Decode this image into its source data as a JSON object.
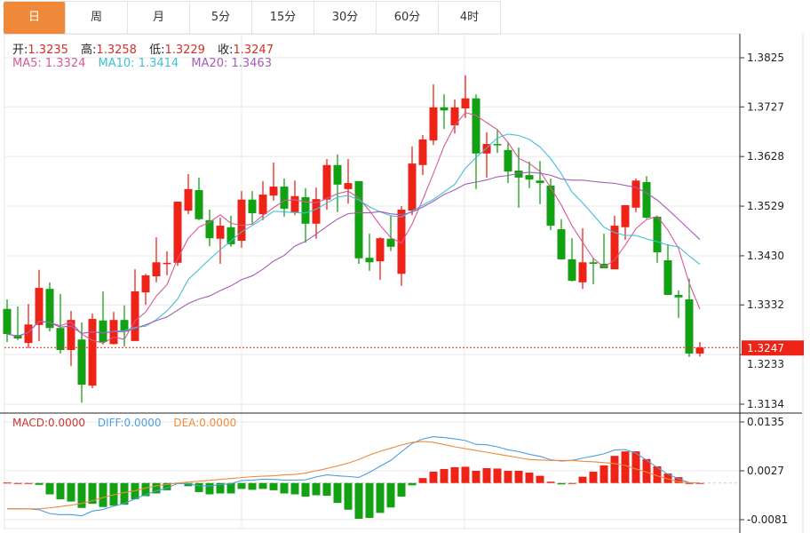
{
  "tabs": [
    {
      "label": "日",
      "active": true
    },
    {
      "label": "周"
    },
    {
      "label": "月"
    },
    {
      "label": "5分"
    },
    {
      "label": "15分"
    },
    {
      "label": "30分"
    },
    {
      "label": "60分"
    },
    {
      "label": "4时"
    }
  ],
  "ohlc": {
    "open_label": "开:",
    "open": "1.3235",
    "high_label": "高:",
    "high": "1.3258",
    "low_label": "低:",
    "low": "1.3229",
    "close_label": "收:",
    "close": "1.3247"
  },
  "ma": {
    "ma5_label": "MA5: 1.3324",
    "ma10_label": "MA10: 1.3414",
    "ma20_label": "MA20: 1.3463"
  },
  "macd_legend": {
    "macd": "MACD:0.0000",
    "diff": "DIFF:0.0000",
    "dea": "DEA:0.0000"
  },
  "colors": {
    "up": "#ee2318",
    "down": "#12a112",
    "ma5": "#d9589a",
    "ma10": "#40c0d4",
    "ma20": "#a55cb8",
    "diff": "#4d9ee0",
    "dea": "#ef8a3a",
    "active_tab": "#f0883a"
  },
  "chart_data": [
    {
      "type": "candlestick",
      "y_ticks": [
        "1.3825",
        "1.3727",
        "1.3628",
        "1.3529",
        "1.3430",
        "1.3332",
        "1.3233",
        "1.3134"
      ],
      "ylim": [
        1.3134,
        1.3825
      ],
      "last_price_label": "1.3247",
      "ma_periods": [
        5,
        10,
        20
      ],
      "candles": [
        [
          1.3324,
          1.3343,
          1.3258,
          1.3274
        ],
        [
          1.3272,
          1.3329,
          1.3262,
          1.3265
        ],
        [
          1.3256,
          1.3334,
          1.3246,
          1.3293
        ],
        [
          1.3292,
          1.3402,
          1.326,
          1.3366
        ],
        [
          1.3364,
          1.3377,
          1.3279,
          1.3286
        ],
        [
          1.3286,
          1.3354,
          1.3235,
          1.3242
        ],
        [
          1.3242,
          1.332,
          1.321,
          1.3302
        ],
        [
          1.3263,
          1.3297,
          1.3137,
          1.3173
        ],
        [
          1.3171,
          1.3315,
          1.3166,
          1.3304
        ],
        [
          1.3301,
          1.3359,
          1.3253,
          1.3258
        ],
        [
          1.3254,
          1.3318,
          1.3253,
          1.3302
        ],
        [
          1.3302,
          1.3331,
          1.3249,
          1.3279
        ],
        [
          1.326,
          1.3403,
          1.326,
          1.3359
        ],
        [
          1.3357,
          1.3394,
          1.3332,
          1.3391
        ],
        [
          1.3389,
          1.3467,
          1.3377,
          1.3417
        ],
        [
          1.3414,
          1.3439,
          1.3391,
          1.3416
        ],
        [
          1.3416,
          1.3538,
          1.341,
          1.3538
        ],
        [
          1.352,
          1.3593,
          1.3513,
          1.3563
        ],
        [
          1.3561,
          1.3586,
          1.3501,
          1.3503
        ],
        [
          1.3501,
          1.3522,
          1.3449,
          1.3465
        ],
        [
          1.3464,
          1.3506,
          1.3414,
          1.349
        ],
        [
          1.3487,
          1.351,
          1.3448,
          1.3453
        ],
        [
          1.346,
          1.3559,
          1.3446,
          1.3542
        ],
        [
          1.3542,
          1.3559,
          1.3494,
          1.3515
        ],
        [
          1.3513,
          1.3579,
          1.3501,
          1.3552
        ],
        [
          1.355,
          1.3616,
          1.354,
          1.3568
        ],
        [
          1.3568,
          1.3584,
          1.3508,
          1.3524
        ],
        [
          1.3517,
          1.358,
          1.3511,
          1.3549
        ],
        [
          1.3547,
          1.3565,
          1.3456,
          1.3494
        ],
        [
          1.3494,
          1.3566,
          1.3464,
          1.3543
        ],
        [
          1.3542,
          1.3623,
          1.3522,
          1.3611
        ],
        [
          1.3611,
          1.3632,
          1.3517,
          1.3572
        ],
        [
          1.3563,
          1.3623,
          1.3534,
          1.3575
        ],
        [
          1.3579,
          1.3579,
          1.3414,
          1.3425
        ],
        [
          1.3426,
          1.3474,
          1.34,
          1.3417
        ],
        [
          1.3419,
          1.3467,
          1.3382,
          1.3465
        ],
        [
          1.3464,
          1.351,
          1.3439,
          1.3448
        ],
        [
          1.3394,
          1.3529,
          1.337,
          1.3522
        ],
        [
          1.352,
          1.3648,
          1.3511,
          1.3614
        ],
        [
          1.3611,
          1.3671,
          1.3591,
          1.3662
        ],
        [
          1.366,
          1.3772,
          1.3651,
          1.3726
        ],
        [
          1.3726,
          1.3752,
          1.3683,
          1.372
        ],
        [
          1.369,
          1.3742,
          1.3674,
          1.3726
        ],
        [
          1.3724,
          1.379,
          1.3705,
          1.3744
        ],
        [
          1.3744,
          1.3752,
          1.3563,
          1.3634
        ],
        [
          1.3634,
          1.3676,
          1.3586,
          1.3653
        ],
        [
          1.3653,
          1.3681,
          1.3635,
          1.3651
        ],
        [
          1.3641,
          1.3657,
          1.3575,
          1.3598
        ],
        [
          1.36,
          1.3646,
          1.3526,
          1.3586
        ],
        [
          1.3591,
          1.3618,
          1.3565,
          1.3582
        ],
        [
          1.358,
          1.3619,
          1.3533,
          1.3575
        ],
        [
          1.357,
          1.3584,
          1.3481,
          1.349
        ],
        [
          1.3483,
          1.3503,
          1.3423,
          1.3423
        ],
        [
          1.3423,
          1.3465,
          1.3379,
          1.338
        ],
        [
          1.3377,
          1.3485,
          1.3364,
          1.3417
        ],
        [
          1.3417,
          1.3426,
          1.3373,
          1.3414
        ],
        [
          1.3414,
          1.3474,
          1.3405,
          1.3405
        ],
        [
          1.3403,
          1.351,
          1.3403,
          1.349
        ],
        [
          1.3487,
          1.3531,
          1.3462,
          1.3531
        ],
        [
          1.3526,
          1.3584,
          1.3517,
          1.358
        ],
        [
          1.3577,
          1.3589,
          1.3504,
          1.3506
        ],
        [
          1.3508,
          1.351,
          1.3416,
          1.3437
        ],
        [
          1.3421,
          1.3453,
          1.3352,
          1.3352
        ],
        [
          1.3352,
          1.3361,
          1.3306,
          1.3347
        ],
        [
          1.3343,
          1.3384,
          1.3228,
          1.3235
        ],
        [
          1.3235,
          1.3258,
          1.3229,
          1.3247
        ]
      ]
    },
    {
      "type": "macd",
      "y_ticks": [
        "0.0135",
        "0.0027",
        "-0.0081"
      ],
      "ylim": [
        -0.0081,
        0.0135
      ],
      "macd": [
        0.0001,
        0,
        0,
        -0.0004,
        -0.0025,
        -0.0036,
        -0.0041,
        -0.0055,
        -0.0046,
        -0.0053,
        -0.005,
        -0.0048,
        -0.0036,
        -0.0029,
        -0.0023,
        -0.0016,
        -0.0002,
        -0.0007,
        -0.002,
        -0.0025,
        -0.0023,
        -0.0023,
        -0.0013,
        -0.0015,
        -0.0013,
        -0.0016,
        -0.0023,
        -0.0025,
        -0.003,
        -0.0027,
        -0.0028,
        -0.0044,
        -0.0059,
        -0.0079,
        -0.0077,
        -0.0066,
        -0.0054,
        -0.003,
        -0.0005,
        0.0011,
        0.0025,
        0.0031,
        0.0035,
        0.0036,
        0.0027,
        0.0033,
        0.0032,
        0.0027,
        0.0027,
        0.0023,
        0.0016,
        0.0003,
        -0.0003,
        0,
        0.0014,
        0.0025,
        0.0039,
        0.006,
        0.007,
        0.007,
        0.0053,
        0.0037,
        0.0021,
        0.0013,
        0,
        0
      ],
      "dea": [
        -0.0057,
        -0.0057,
        -0.0057,
        -0.0057,
        -0.0055,
        -0.0052,
        -0.0049,
        -0.0045,
        -0.0039,
        -0.0032,
        -0.0026,
        -0.0021,
        -0.0017,
        -0.0011,
        -0.0006,
        -0.0003,
        0,
        0.0002,
        0.0004,
        0.0006,
        0.0008,
        0.001,
        0.0012,
        0.0014,
        0.0015,
        0.0016,
        0.0018,
        0.0019,
        0.0022,
        0.0027,
        0.0032,
        0.0038,
        0.0044,
        0.0052,
        0.0062,
        0.007,
        0.0077,
        0.0084,
        0.009,
        0.0092,
        0.009,
        0.0085,
        0.008,
        0.0076,
        0.0072,
        0.0068,
        0.0064,
        0.006,
        0.0056,
        0.0052,
        0.0051,
        0.005,
        0.005,
        0.005,
        0.0048,
        0.0047,
        0.0045,
        0.0043,
        0.0039,
        0.0031,
        0.0024,
        0.0016,
        0.0009,
        0.0003,
        0.0001,
        0
      ]
    }
  ]
}
